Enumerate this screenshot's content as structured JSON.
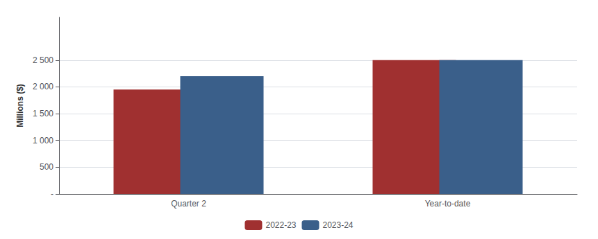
{
  "chart_data": {
    "type": "bar",
    "categories": [
      "Quarter 2",
      "Year-to-date"
    ],
    "series": [
      {
        "name": "2022-23",
        "color": "#A03030",
        "values": [
          1950,
          2500
        ]
      },
      {
        "name": "2023-24",
        "color": "#3A5F8A",
        "values": [
          2200,
          2500
        ]
      }
    ],
    "ylabel": "Millions ($)",
    "ylim": [
      0,
      3300
    ],
    "yticks": [
      {
        "value": 0,
        "label": "-"
      },
      500,
      {
        "value": 1000,
        "label": "1 000"
      },
      {
        "value": 1500,
        "label": "1 500"
      },
      {
        "value": 2000,
        "label": "2 000"
      },
      {
        "value": 2500,
        "label": "2 500"
      }
    ],
    "grid": true,
    "legend": "bottom"
  }
}
